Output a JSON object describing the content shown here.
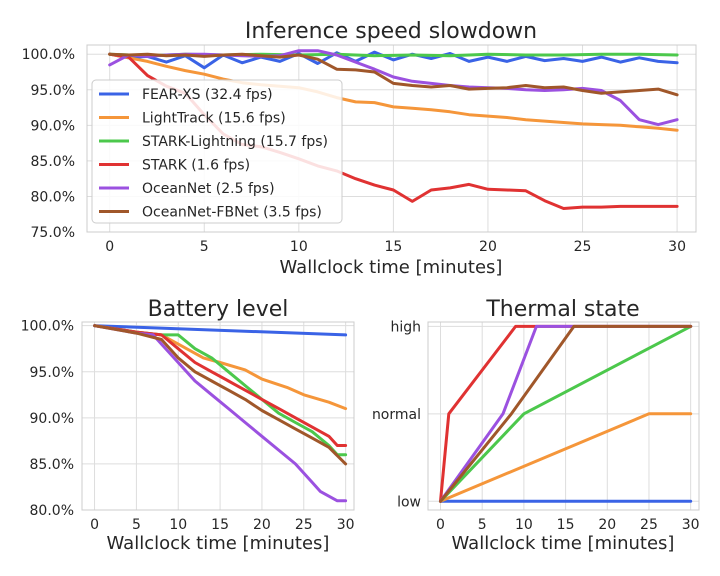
{
  "chart_data": [
    {
      "id": "speed",
      "type": "line",
      "title": "Inference speed slowdown",
      "xlabel": "Wallclock time [minutes]",
      "ylabel": "",
      "xlim": [
        -1.2,
        31
      ],
      "ylim": [
        75,
        101.3
      ],
      "xticks": [
        0,
        5,
        10,
        15,
        20,
        25,
        30
      ],
      "xtick_labels": [
        "0",
        "5",
        "10",
        "15",
        "20",
        "25",
        "30"
      ],
      "yticks": [
        75,
        80,
        85,
        90,
        95,
        100
      ],
      "ytick_labels": [
        "75.0%",
        "80.0%",
        "85.0%",
        "90.0%",
        "95.0%",
        "100.0%"
      ],
      "grid": true,
      "legend_position": "center-left",
      "series": [
        {
          "name": "FEAR-XS (32.4 fps)",
          "color": "#3a63e6",
          "x": [
            0,
            1,
            2,
            3,
            4,
            5,
            6,
            7,
            8,
            9,
            10,
            11,
            12,
            13,
            14,
            15,
            16,
            17,
            18,
            19,
            20,
            21,
            22,
            23,
            24,
            25,
            26,
            27,
            28,
            29,
            30
          ],
          "y": [
            100.0,
            99.5,
            99.7,
            98.9,
            99.8,
            98.1,
            99.9,
            98.8,
            99.6,
            99.0,
            100.1,
            98.7,
            100.2,
            99.0,
            100.3,
            99.2,
            100.0,
            99.4,
            100.1,
            99.0,
            99.6,
            99.0,
            99.7,
            99.1,
            99.4,
            99.0,
            99.6,
            98.9,
            99.5,
            99.0,
            98.8
          ]
        },
        {
          "name": "LightTrack (15.6 fps)",
          "color": "#f5963a",
          "x": [
            0,
            1,
            2,
            3,
            4,
            5,
            6,
            7,
            8,
            9,
            10,
            11,
            12,
            13,
            14,
            15,
            16,
            17,
            18,
            19,
            20,
            21,
            22,
            23,
            24,
            25,
            26,
            27,
            28,
            29,
            30
          ],
          "y": [
            100.0,
            99.5,
            99.0,
            98.3,
            97.7,
            97.2,
            96.5,
            96.0,
            95.7,
            95.5,
            95.3,
            94.7,
            93.9,
            93.3,
            93.2,
            92.6,
            92.4,
            92.2,
            91.9,
            91.5,
            91.3,
            91.1,
            90.8,
            90.6,
            90.4,
            90.2,
            90.1,
            90.0,
            89.8,
            89.6,
            89.3
          ]
        },
        {
          "name": "STARK-Lightning (15.7 fps)",
          "color": "#4cc84c",
          "x": [
            0,
            2,
            4,
            6,
            8,
            10,
            12,
            14,
            16,
            18,
            20,
            22,
            24,
            26,
            28,
            30
          ],
          "y": [
            100.0,
            99.8,
            100.0,
            99.9,
            100.0,
            99.9,
            100.0,
            99.8,
            99.9,
            99.8,
            100.0,
            99.9,
            99.9,
            100.0,
            100.0,
            99.9
          ]
        },
        {
          "name": "STARK (1.6 fps)",
          "color": "#e03232",
          "x": [
            0,
            1,
            2,
            3,
            4,
            5,
            6,
            7,
            8,
            9,
            10,
            11,
            12,
            13,
            14,
            15,
            16,
            17,
            18,
            19,
            20,
            21,
            22,
            23,
            24,
            25,
            26,
            27,
            28,
            29,
            30
          ],
          "y": [
            100.0,
            99.6,
            97.0,
            95.5,
            94.5,
            91.5,
            88.8,
            87.3,
            87.0,
            86.2,
            85.3,
            84.3,
            83.6,
            82.5,
            81.6,
            80.9,
            79.3,
            80.9,
            81.2,
            81.7,
            81.0,
            80.9,
            80.8,
            79.4,
            78.3,
            78.5,
            78.5,
            78.6,
            78.6,
            78.6,
            78.6
          ]
        },
        {
          "name": "OceanNet (2.5 fps)",
          "color": "#9b51e0",
          "x": [
            0,
            1,
            2,
            3,
            4,
            5,
            6,
            7,
            8,
            9,
            10,
            11,
            12,
            13,
            14,
            15,
            16,
            17,
            18,
            19,
            20,
            21,
            22,
            23,
            24,
            25,
            26,
            27,
            28,
            29,
            30
          ],
          "y": [
            98.5,
            99.9,
            99.7,
            99.9,
            100.0,
            100.0,
            99.9,
            99.8,
            99.7,
            99.8,
            100.5,
            100.5,
            99.9,
            98.9,
            97.9,
            96.8,
            96.2,
            95.9,
            95.6,
            95.4,
            95.3,
            95.2,
            95.0,
            94.9,
            95.0,
            95.2,
            94.9,
            93.5,
            90.8,
            90.1,
            90.8
          ]
        },
        {
          "name": "OceanNet-FBNet (3.5 fps)",
          "color": "#a0572a",
          "x": [
            0,
            1,
            2,
            3,
            4,
            5,
            6,
            7,
            8,
            9,
            10,
            11,
            12,
            13,
            14,
            15,
            16,
            17,
            18,
            19,
            20,
            21,
            22,
            23,
            24,
            25,
            26,
            27,
            28,
            29,
            30
          ],
          "y": [
            100.0,
            99.9,
            100.0,
            99.8,
            99.9,
            99.7,
            99.9,
            100.0,
            99.8,
            99.6,
            99.9,
            99.3,
            97.9,
            97.8,
            97.5,
            95.9,
            95.6,
            95.4,
            95.6,
            95.1,
            95.2,
            95.3,
            95.6,
            95.3,
            95.4,
            94.9,
            94.5,
            94.7,
            94.9,
            95.1,
            94.3
          ]
        }
      ]
    },
    {
      "id": "battery",
      "type": "line",
      "title": "Battery level",
      "xlabel": "Wallclock time [minutes]",
      "ylabel": "",
      "xlim": [
        -1.5,
        31
      ],
      "ylim": [
        80,
        100.4
      ],
      "xticks": [
        0,
        5,
        10,
        15,
        20,
        25,
        30
      ],
      "xtick_labels": [
        "0",
        "5",
        "10",
        "15",
        "20",
        "25",
        "30"
      ],
      "yticks": [
        80,
        85,
        90,
        95,
        100
      ],
      "ytick_labels": [
        "80.0%",
        "85.0%",
        "90.0%",
        "95.0%",
        "100.0%"
      ],
      "grid": true,
      "series": [
        {
          "name": "FEAR-XS (32.4 fps)",
          "color": "#3a63e6",
          "x": [
            0,
            30
          ],
          "y": [
            100,
            99
          ]
        },
        {
          "name": "LightTrack (15.6 fps)",
          "color": "#f5963a",
          "x": [
            0,
            5,
            8,
            10,
            13,
            15,
            18,
            20,
            23,
            25,
            28,
            30
          ],
          "y": [
            100,
            99.3,
            99,
            98,
            96.5,
            96,
            95.2,
            94.2,
            93.3,
            92.5,
            91.7,
            91
          ]
        },
        {
          "name": "STARK-Lightning (15.7 fps)",
          "color": "#4cc84c",
          "x": [
            0,
            5,
            8,
            10,
            12,
            14,
            16,
            18,
            20,
            22,
            24,
            26,
            28,
            29,
            30
          ],
          "y": [
            100,
            99.3,
            99,
            99,
            97.5,
            96.5,
            95,
            93.5,
            92,
            90.5,
            89.5,
            88.5,
            87,
            86,
            86
          ]
        },
        {
          "name": "STARK (1.6 fps)",
          "color": "#e03232",
          "x": [
            0,
            5,
            8,
            10,
            12,
            14,
            16,
            18,
            20,
            22,
            24,
            26,
            28,
            29,
            30
          ],
          "y": [
            100,
            99.3,
            99,
            97.5,
            96,
            95,
            94,
            93,
            92,
            91,
            90,
            89,
            88,
            87,
            87
          ]
        },
        {
          "name": "OceanNet (2.5 fps)",
          "color": "#9b51e0",
          "x": [
            0,
            5,
            7,
            8,
            10,
            12,
            14,
            16,
            18,
            20,
            22,
            24,
            25,
            26,
            27,
            29,
            30
          ],
          "y": [
            100,
            99.2,
            99,
            98,
            96,
            94,
            92.5,
            91,
            89.5,
            88,
            86.5,
            85,
            84,
            83,
            82,
            81,
            81
          ]
        },
        {
          "name": "OceanNet-FBNet (3.5 fps)",
          "color": "#a0572a",
          "x": [
            0,
            5,
            8,
            10,
            12,
            14,
            16,
            18,
            20,
            22,
            24,
            26,
            28,
            30
          ],
          "y": [
            100,
            99.2,
            98.5,
            96.5,
            95,
            94,
            93,
            92,
            90.8,
            89.8,
            88.8,
            87.8,
            86.8,
            85
          ]
        }
      ]
    },
    {
      "id": "thermal",
      "type": "line",
      "title": "Thermal state",
      "xlabel": "Wallclock time [minutes]",
      "ylabel": "",
      "xlim": [
        -1.5,
        31
      ],
      "ylim": [
        -0.1,
        2.05
      ],
      "xticks": [
        0,
        5,
        10,
        15,
        20,
        25,
        30
      ],
      "xtick_labels": [
        "0",
        "5",
        "10",
        "15",
        "20",
        "25",
        "30"
      ],
      "yticks": [
        0,
        1,
        2
      ],
      "ytick_labels": [
        "low",
        "normal",
        "high"
      ],
      "grid": true,
      "series": [
        {
          "name": "FEAR-XS (32.4 fps)",
          "color": "#3a63e6",
          "x": [
            0,
            30
          ],
          "y": [
            0,
            0
          ]
        },
        {
          "name": "LightTrack (15.6 fps)",
          "color": "#f5963a",
          "x": [
            0,
            25,
            30
          ],
          "y": [
            0,
            1,
            1
          ]
        },
        {
          "name": "STARK-Lightning (15.7 fps)",
          "color": "#4cc84c",
          "x": [
            0,
            10,
            30
          ],
          "y": [
            0,
            1,
            2
          ]
        },
        {
          "name": "STARK (1.6 fps)",
          "color": "#e03232",
          "x": [
            0,
            1,
            9,
            30
          ],
          "y": [
            0,
            1,
            2,
            2
          ]
        },
        {
          "name": "OceanNet (2.5 fps)",
          "color": "#9b51e0",
          "x": [
            0,
            7.5,
            11.5,
            30
          ],
          "y": [
            0,
            1,
            2,
            2
          ]
        },
        {
          "name": "OceanNet-FBNet (3.5 fps)",
          "color": "#a0572a",
          "x": [
            0,
            8.5,
            16,
            30
          ],
          "y": [
            0,
            1,
            2,
            2
          ]
        }
      ]
    }
  ]
}
